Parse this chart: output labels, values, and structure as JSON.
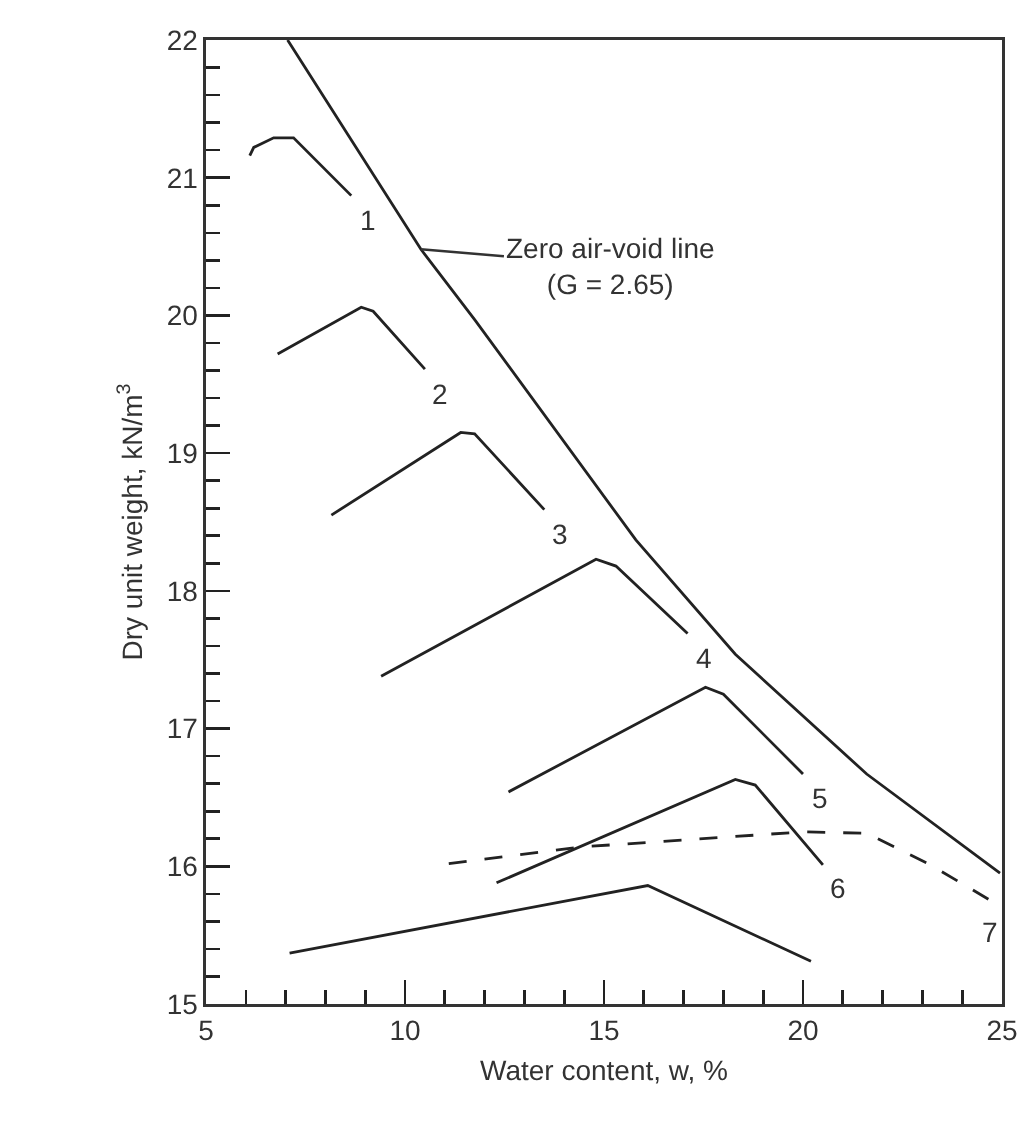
{
  "chart_data": {
    "type": "line",
    "xlabel": "Water content, w, %",
    "ylabel": "Dry unit weight, kN/m$^{3}$",
    "xlim": [
      5,
      25
    ],
    "ylim": [
      15,
      22
    ],
    "xticks": [
      5,
      {
        "value": 6,
        "label": null
      },
      {
        "value": 7,
        "label": null
      },
      {
        "value": 8,
        "label": null
      },
      {
        "value": 9,
        "label": null
      },
      10,
      {
        "value": 11,
        "label": null
      },
      {
        "value": 12,
        "label": null
      },
      {
        "value": 13,
        "label": null
      },
      {
        "value": 14,
        "label": null
      },
      15,
      {
        "value": 16,
        "label": null
      },
      {
        "value": 17,
        "label": null
      },
      {
        "value": 18,
        "label": null
      },
      {
        "value": 19,
        "label": null
      },
      20,
      {
        "value": 21,
        "label": null
      },
      {
        "value": 22,
        "label": null
      },
      {
        "value": 23,
        "label": null
      },
      {
        "value": 24,
        "label": null
      },
      25
    ],
    "yticks": [
      15,
      {
        "value": 15.2,
        "label": null
      },
      {
        "value": 15.4,
        "label": null
      },
      {
        "value": 15.6,
        "label": null
      },
      {
        "value": 15.8,
        "label": null
      },
      16,
      {
        "value": 16.2,
        "label": null
      },
      {
        "value": 16.4,
        "label": null
      },
      {
        "value": 16.6,
        "label": null
      },
      {
        "value": 16.8,
        "label": null
      },
      17,
      {
        "value": 17.2,
        "label": null
      },
      {
        "value": 17.4,
        "label": null
      },
      {
        "value": 17.6,
        "label": null
      },
      {
        "value": 17.8,
        "label": null
      },
      18,
      {
        "value": 18.2,
        "label": null
      },
      {
        "value": 18.4,
        "label": null
      },
      {
        "value": 18.6,
        "label": null
      },
      {
        "value": 18.8,
        "label": null
      },
      19,
      {
        "value": 19.2,
        "label": null
      },
      {
        "value": 19.4,
        "label": null
      },
      {
        "value": 19.6,
        "label": null
      },
      {
        "value": 19.8,
        "label": null
      },
      20,
      {
        "value": 20.2,
        "label": null
      },
      {
        "value": 20.4,
        "label": null
      },
      {
        "value": 20.6,
        "label": null
      },
      {
        "value": 20.8,
        "label": null
      },
      21,
      {
        "value": 21.2,
        "label": null
      },
      {
        "value": 21.4,
        "label": null
      },
      {
        "value": 21.6,
        "label": null
      },
      {
        "value": 21.8,
        "label": null
      },
      22
    ],
    "grid": false,
    "legend": false,
    "marker": "none",
    "series": [
      {
        "name": "Zero air-void line\n(G = 2.65)",
        "color": "#222222",
        "line_style": "solid",
        "x": [
          7.05,
          10.4,
          11.75,
          15.8,
          18.3,
          21.6,
          24.95
        ],
        "values": [
          22,
          20.48,
          19.97,
          18.37,
          17.54,
          16.67,
          15.95
        ]
      },
      {
        "name": "1",
        "color": "#222222",
        "line_style": "solid",
        "x": [
          6.1,
          6.2,
          6.7,
          7.2,
          8.65
        ],
        "values": [
          21.16,
          21.22,
          21.29,
          21.29,
          20.87
        ]
      },
      {
        "name": "2",
        "color": "#222222",
        "line_style": "solid",
        "x": [
          6.8,
          8.9,
          9.2,
          10.5
        ],
        "values": [
          19.72,
          20.06,
          20.03,
          19.61
        ]
      },
      {
        "name": "3",
        "color": "#222222",
        "line_style": "solid",
        "x": [
          8.15,
          11.4,
          11.75,
          13.5
        ],
        "values": [
          18.55,
          19.15,
          19.14,
          18.59
        ]
      },
      {
        "name": "4",
        "color": "#222222",
        "line_style": "solid",
        "x": [
          9.4,
          14.8,
          15.3,
          17.1
        ],
        "values": [
          17.38,
          18.23,
          18.18,
          17.69
        ]
      },
      {
        "name": "5",
        "color": "#222222",
        "line_style": "solid",
        "x": [
          12.6,
          17.55,
          18.0,
          20.0
        ],
        "values": [
          16.54,
          17.3,
          17.25,
          16.67
        ]
      },
      {
        "name": "6",
        "color": "#222222",
        "line_style": "solid",
        "x": [
          12.3,
          18.3,
          18.8,
          20.5
        ],
        "values": [
          15.88,
          16.63,
          16.59,
          16.01
        ]
      },
      {
        "name": "7",
        "color": "#222222",
        "line_style": "dashed",
        "x": [
          11.1,
          14.4,
          20.0,
          21.6,
          23.2,
          24.9
        ],
        "values": [
          16.02,
          16.14,
          16.25,
          16.24,
          16.01,
          15.72
        ]
      },
      {
        "color": "#222222",
        "line_style": "solid",
        "x": [
          7.1,
          16.1,
          20.2
        ],
        "values": [
          15.37,
          15.86,
          15.31
        ]
      }
    ]
  }
}
